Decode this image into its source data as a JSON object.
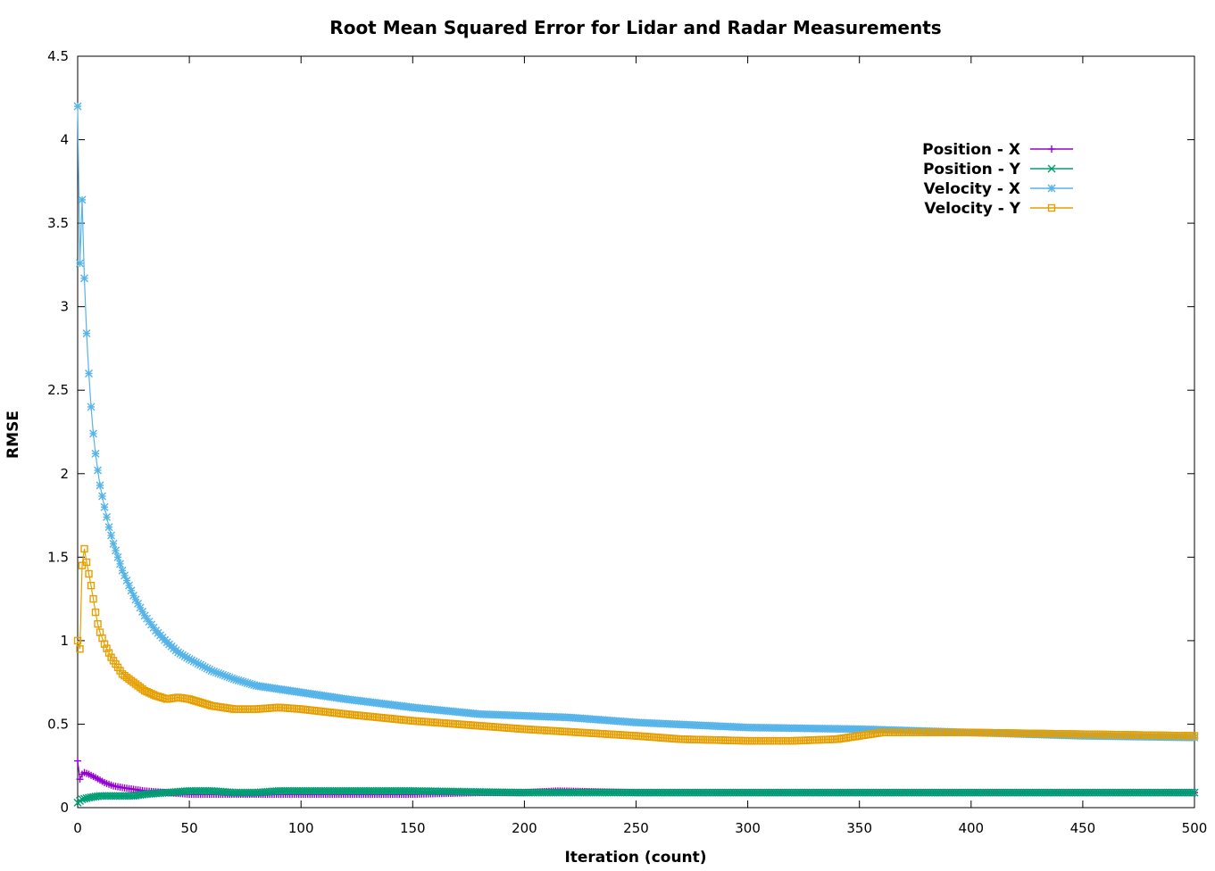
{
  "chart_data": {
    "type": "line",
    "title": "Root Mean Squared Error for Lidar and Radar Measurements",
    "xlabel": "Iteration (count)",
    "ylabel": "RMSE",
    "xlim": [
      0,
      500
    ],
    "ylim": [
      0,
      4.5
    ],
    "xticks": [
      0,
      50,
      100,
      150,
      200,
      250,
      300,
      350,
      400,
      450,
      500
    ],
    "yticks": [
      0,
      0.5,
      1,
      1.5,
      2,
      2.5,
      3,
      3.5,
      4,
      4.5
    ],
    "ytick_labels": [
      "0",
      "0.5",
      "1",
      "1.5",
      "2",
      "2.5",
      "3",
      "3.5",
      "4",
      "4.5"
    ],
    "grid": false,
    "legend_position": "top-right",
    "series": [
      {
        "name": "Position - X",
        "color": "#9400d3",
        "marker": "plus",
        "x": [
          0,
          1,
          2,
          3,
          5,
          8,
          12,
          16,
          20,
          25,
          30,
          40,
          50,
          60,
          70,
          80,
          90,
          100,
          120,
          150,
          180,
          200,
          215,
          250,
          300,
          350,
          400,
          450,
          500
        ],
        "y": [
          0.28,
          0.17,
          0.2,
          0.21,
          0.2,
          0.18,
          0.15,
          0.13,
          0.12,
          0.11,
          0.1,
          0.09,
          0.08,
          0.08,
          0.08,
          0.08,
          0.08,
          0.08,
          0.08,
          0.08,
          0.09,
          0.09,
          0.1,
          0.09,
          0.09,
          0.09,
          0.09,
          0.09,
          0.09
        ]
      },
      {
        "name": "Position - Y",
        "color": "#009e73",
        "marker": "cross",
        "x": [
          0,
          2,
          5,
          10,
          15,
          20,
          25,
          30,
          40,
          50,
          60,
          70,
          80,
          90,
          100,
          150,
          200,
          250,
          300,
          350,
          400,
          450,
          500
        ],
        "y": [
          0.03,
          0.05,
          0.06,
          0.07,
          0.07,
          0.07,
          0.07,
          0.08,
          0.09,
          0.1,
          0.1,
          0.09,
          0.09,
          0.1,
          0.1,
          0.1,
          0.09,
          0.09,
          0.09,
          0.09,
          0.09,
          0.09,
          0.09
        ]
      },
      {
        "name": "Velocity - X",
        "color": "#56b4e9",
        "marker": "star",
        "x": [
          0,
          1,
          2,
          3,
          4,
          5,
          6,
          7,
          8,
          9,
          10,
          12,
          14,
          16,
          18,
          20,
          25,
          30,
          35,
          40,
          45,
          50,
          60,
          70,
          80,
          90,
          100,
          120,
          150,
          180,
          200,
          220,
          250,
          300,
          350,
          400,
          450,
          500
        ],
        "y": [
          4.2,
          3.26,
          3.64,
          3.17,
          2.84,
          2.6,
          2.4,
          2.24,
          2.12,
          2.02,
          1.93,
          1.8,
          1.68,
          1.58,
          1.5,
          1.42,
          1.27,
          1.15,
          1.06,
          0.99,
          0.93,
          0.89,
          0.82,
          0.77,
          0.73,
          0.71,
          0.69,
          0.65,
          0.6,
          0.56,
          0.55,
          0.54,
          0.51,
          0.48,
          0.47,
          0.45,
          0.43,
          0.42
        ]
      },
      {
        "name": "Velocity - Y",
        "color": "#e69f00",
        "marker": "box",
        "x": [
          0,
          1,
          2,
          3,
          4,
          5,
          6,
          7,
          8,
          9,
          10,
          12,
          15,
          18,
          20,
          25,
          30,
          35,
          40,
          45,
          50,
          60,
          70,
          80,
          90,
          100,
          120,
          150,
          180,
          200,
          250,
          270,
          300,
          320,
          340,
          360,
          400,
          450,
          500
        ],
        "y": [
          1.0,
          0.95,
          1.45,
          1.55,
          1.47,
          1.4,
          1.33,
          1.25,
          1.17,
          1.1,
          1.05,
          0.98,
          0.9,
          0.84,
          0.8,
          0.75,
          0.7,
          0.67,
          0.65,
          0.66,
          0.65,
          0.61,
          0.59,
          0.59,
          0.6,
          0.59,
          0.56,
          0.52,
          0.49,
          0.47,
          0.43,
          0.41,
          0.4,
          0.4,
          0.41,
          0.45,
          0.45,
          0.44,
          0.43
        ]
      }
    ]
  }
}
